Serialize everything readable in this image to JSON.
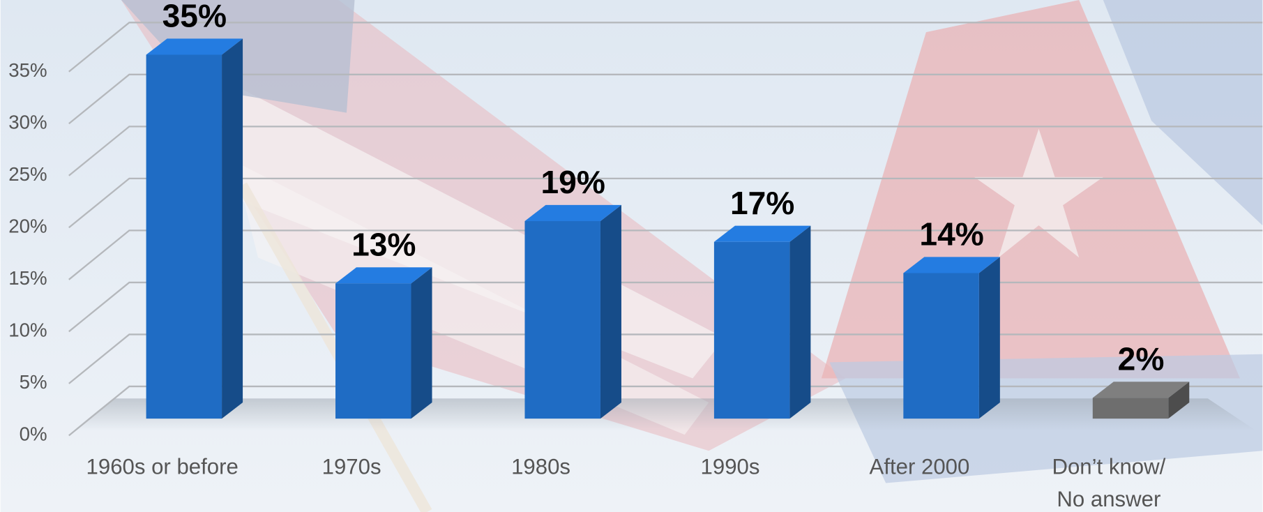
{
  "chart_data": {
    "type": "bar",
    "categories": [
      "1960s or before",
      "1970s",
      "1980s",
      "1990s",
      "After 2000",
      "Don’t know/\nNo answer"
    ],
    "values": [
      35,
      13,
      19,
      17,
      14,
      2
    ],
    "value_labels": [
      "35%",
      "13%",
      "19%",
      "17%",
      "14%",
      "2%"
    ],
    "colors": [
      "#1f6cc4",
      "#1f6cc4",
      "#1f6cc4",
      "#1f6cc4",
      "#1f6cc4",
      "#6e6e6e"
    ],
    "ylim": [
      0,
      35
    ],
    "yticks": [
      {
        "value": 0,
        "label": "0%"
      },
      {
        "value": 5,
        "label": "5%"
      },
      {
        "value": 10,
        "label": "10%"
      },
      {
        "value": 15,
        "label": "15%"
      },
      {
        "value": 20,
        "label": "20%"
      },
      {
        "value": 25,
        "label": "25%"
      },
      {
        "value": 30,
        "label": "30%"
      },
      {
        "value": 35,
        "label": "35%"
      }
    ],
    "grid": true
  }
}
